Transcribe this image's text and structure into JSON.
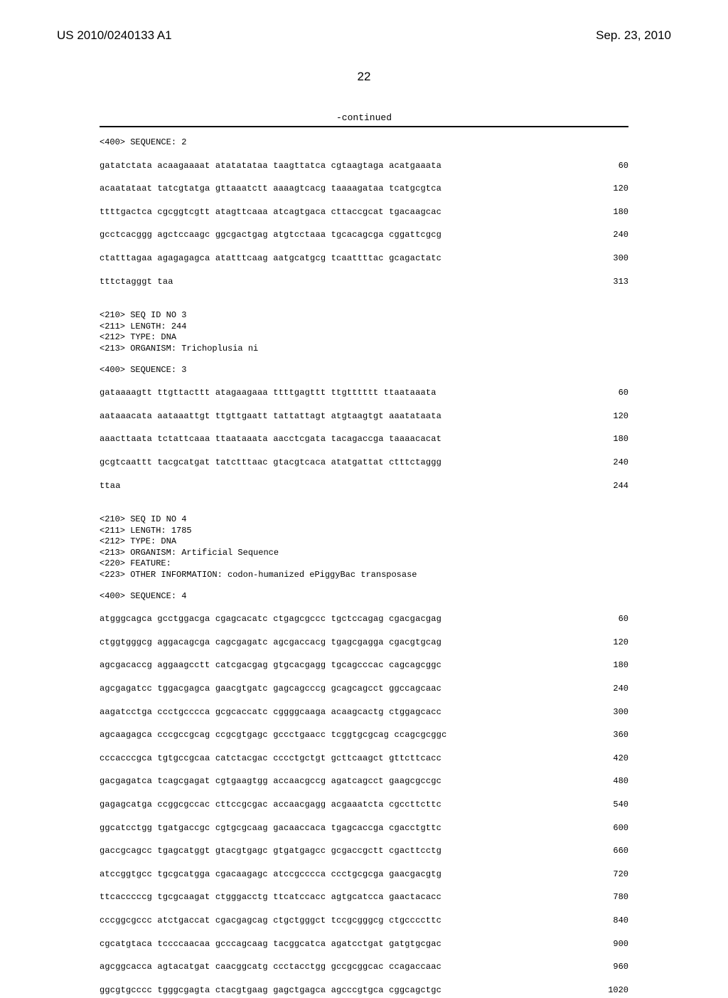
{
  "header": {
    "left": "US 2010/0240133 A1",
    "right": "Sep. 23, 2010"
  },
  "page_number": "22",
  "continued_label": "-continued",
  "seq2": {
    "seq_tag": "<400> SEQUENCE: 2",
    "rows": [
      {
        "g": "gatatctata acaagaaaat atatatataa taagttatca cgtaagtaga acatgaaata",
        "p": "60"
      },
      {
        "g": "acaatataat tatcgtatga gttaaatctt aaaagtcacg taaaagataa tcatgcgtca",
        "p": "120"
      },
      {
        "g": "ttttgactca cgcggtcgtt atagttcaaa atcagtgaca cttaccgcat tgacaagcac",
        "p": "180"
      },
      {
        "g": "gcctcacggg agctccaagc ggcgactgag atgtcctaaa tgcacagcga cggattcgcg",
        "p": "240"
      },
      {
        "g": "ctatttagaa agagagagca atatttcaag aatgcatgcg tcaattttac gcagactatc",
        "p": "300"
      },
      {
        "g": "tttctagggt taa",
        "p": "313"
      }
    ]
  },
  "seq3": {
    "meta": [
      "<210> SEQ ID NO 3",
      "<211> LENGTH: 244",
      "<212> TYPE: DNA",
      "<213> ORGANISM: Trichoplusia ni"
    ],
    "seq_tag": "<400> SEQUENCE: 3",
    "rows": [
      {
        "g": "gataaaagtt ttgttacttt atagaagaaa ttttgagttt ttgtttttt ttaataaata",
        "p": "60"
      },
      {
        "g": "aataaacata aataaattgt ttgttgaatt tattattagt atgtaagtgt aaatataata",
        "p": "120"
      },
      {
        "g": "aaacttaata tctattcaaa ttaataaata aacctcgata tacagaccga taaaacacat",
        "p": "180"
      },
      {
        "g": "gcgtcaattt tacgcatgat tatctttaac gtacgtcaca atatgattat ctttctaggg",
        "p": "240"
      },
      {
        "g": "ttaa",
        "p": "244"
      }
    ]
  },
  "seq4": {
    "meta": [
      "<210> SEQ ID NO 4",
      "<211> LENGTH: 1785",
      "<212> TYPE: DNA",
      "<213> ORGANISM: Artificial Sequence",
      "<220> FEATURE:",
      "<223> OTHER INFORMATION: codon-humanized ePiggyBac transposase"
    ],
    "seq_tag": "<400> SEQUENCE: 4",
    "rows": [
      {
        "g": "atgggcagca gcctggacga cgagcacatc ctgagcgccc tgctccagag cgacgacgag",
        "p": "60"
      },
      {
        "g": "ctggtgggcg aggacagcga cagcgagatc agcgaccacg tgagcgagga cgacgtgcag",
        "p": "120"
      },
      {
        "g": "agcgacaccg aggaagcctt catcgacgag gtgcacgagg tgcagcccac cagcagcggc",
        "p": "180"
      },
      {
        "g": "agcgagatcc tggacgagca gaacgtgatc gagcagcccg gcagcagcct ggccagcaac",
        "p": "240"
      },
      {
        "g": "aagatcctga ccctgcccca gcgcaccatc cggggcaaga acaagcactg ctggagcacc",
        "p": "300"
      },
      {
        "g": "agcaagagca cccgccgcag ccgcgtgagc gccctgaacc tcggtgcgcag ccagcgcggc",
        "p": "360"
      },
      {
        "g": "cccacccgca tgtgccgcaa catctacgac cccctgctgt gcttcaagct gttcttcacc",
        "p": "420"
      },
      {
        "g": "gacgagatca tcagcgagat cgtgaagtgg accaacgccg agatcagcct gaagcgccgc",
        "p": "480"
      },
      {
        "g": "gagagcatga ccggcgccac cttccgcgac accaacgagg acgaaatcta cgccttcttc",
        "p": "540"
      },
      {
        "g": "ggcatcctgg tgatgaccgc cgtgcgcaag gacaaccaca tgagcaccga cgacctgttc",
        "p": "600"
      },
      {
        "g": "gaccgcagcc tgagcatggt gtacgtgagc gtgatgagcc gcgaccgctt cgacttcctg",
        "p": "660"
      },
      {
        "g": "atccggtgcc tgcgcatgga cgacaagagc atccgcccca ccctgcgcga gaacgacgtg",
        "p": "720"
      },
      {
        "g": "ttcacccccg tgcgcaagat ctgggacctg ttcatccacc agtgcatcca gaactacacc",
        "p": "780"
      },
      {
        "g": "cccggcgccc atctgaccat cgacgagcag ctgctgggct tccgcgggcg ctgccccttc",
        "p": "840"
      },
      {
        "g": "cgcatgtaca tccccaacaa gcccagcaag tacggcatca agatcctgat gatgtgcgac",
        "p": "900"
      },
      {
        "g": "agcggcacca agtacatgat caacggcatg ccctacctgg gccgcggcac ccagaccaac",
        "p": "960"
      },
      {
        "g": "ggcgtgcccc tgggcgagta ctacgtgaag gagctgagca agcccgtgca cggcagctgc",
        "p": "1020"
      }
    ]
  }
}
